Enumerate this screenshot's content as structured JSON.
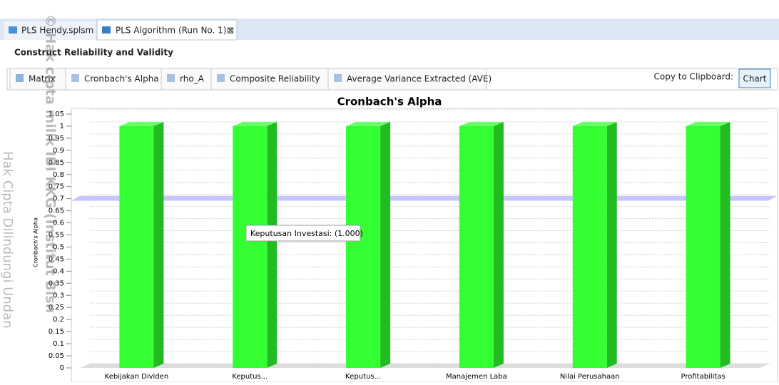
{
  "editor_tabs": [
    "PLS Hendy.splsm",
    "PLS Algorithm (Run No. 1)"
  ],
  "heading": "Construct Reliability and Validity",
  "sub_tabs": [
    "Matrix",
    "Cronbach's Alpha",
    "rho_A",
    "Composite Reliability",
    "Average Variance Extracted (AVE)"
  ],
  "clipboard_label": "Copy to Clipboard:",
  "clipboard_button": "Chart",
  "watermark": [
    "© Hak cipta milik IBI KKG (Institut Bisn",
    "Hak Cipta Dilindungi Undan"
  ],
  "chart_data": {
    "type": "bar",
    "title": "Cronbach's Alpha",
    "y_label": "Cronbach's Alpha",
    "categories": [
      "Kebijakan Dividen",
      "Keputus...",
      "Keputus...",
      "Manajemen Laba",
      "Nilai Perusahaan",
      "Profitabilitas"
    ],
    "values": [
      1.0,
      1.0,
      1.0,
      1.0,
      1.0,
      1.0
    ],
    "color": "#33ff33",
    "ylim": [
      0,
      1.05
    ],
    "yticks": [
      0,
      0.05,
      0.1,
      0.15,
      0.2,
      0.25,
      0.3,
      0.35,
      0.4,
      0.45,
      0.5,
      0.55,
      0.6,
      0.65,
      0.7,
      0.75,
      0.8,
      0.85,
      0.9,
      0.95,
      1,
      1.05
    ],
    "grid": true,
    "threshold": 0.7,
    "tooltip": "Keputusan Investasi: (1.000)"
  }
}
